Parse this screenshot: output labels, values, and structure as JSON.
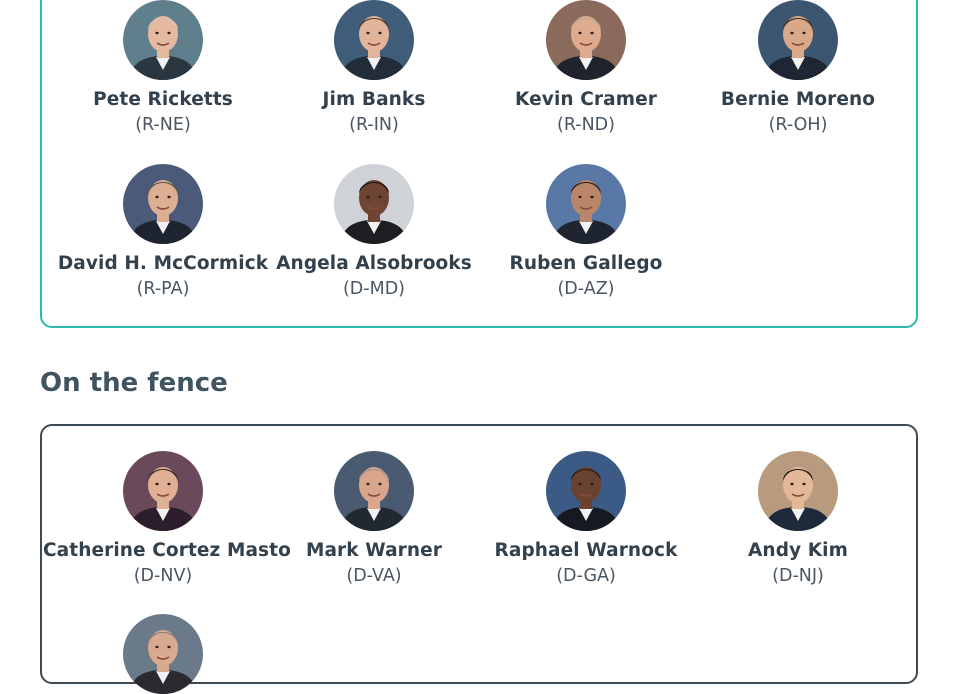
{
  "supporting": [
    {
      "name": "Pete Ricketts",
      "party": "(R-NE)",
      "bg": "#5f7f8d",
      "suit": "#2a3640",
      "hair": "#d8c2b2",
      "skin": "#e5b9a0"
    },
    {
      "name": "Jim Banks",
      "party": "(R-IN)",
      "bg": "#3f5d78",
      "suit": "#232d3a",
      "hair": "#4a3a2e",
      "skin": "#e2b59a"
    },
    {
      "name": "Kevin Cramer",
      "party": "(R-ND)",
      "bg": "#8a6a5a",
      "suit": "#1f242c",
      "hair": "#b9aa9c",
      "skin": "#deab8f"
    },
    {
      "name": "Bernie Moreno",
      "party": "(R-OH)",
      "bg": "#3c5672",
      "suit": "#1d2632",
      "hair": "#3a2e28",
      "skin": "#d8a888"
    },
    {
      "name": "David H. McCormick",
      "party": "(R-PA)",
      "bg": "#4a5a78",
      "suit": "#1f2530",
      "hair": "#5a5650",
      "skin": "#dcae92"
    },
    {
      "name": "Angela Alsobrooks",
      "party": "(D-MD)",
      "bg": "#cfd2d6",
      "suit": "#1d1d22",
      "hair": "#1b1614",
      "skin": "#6e4532"
    },
    {
      "name": "Ruben Gallego",
      "party": "(D-AZ)",
      "bg": "#5a78a6",
      "suit": "#1e2430",
      "hair": "#2a221e",
      "skin": "#b9866a"
    }
  ],
  "fence_heading": "On the fence",
  "fence": [
    {
      "name": "Catherine Cortez Masto",
      "party": "(D-NV)",
      "bg": "#6a4a5a",
      "suit": "#2c1e2a",
      "hair": "#3a2a20",
      "skin": "#e0b095"
    },
    {
      "name": "Mark Warner",
      "party": "(D-VA)",
      "bg": "#4a5a70",
      "suit": "#202832",
      "hair": "#9a9490",
      "skin": "#d9a68c"
    },
    {
      "name": "Raphael Warnock",
      "party": "(D-GA)",
      "bg": "#3c5a86",
      "suit": "#151a22",
      "hair": "#2a1c16",
      "skin": "#6a4230"
    },
    {
      "name": "Andy Kim",
      "party": "(D-NJ)",
      "bg": "#b89a7e",
      "suit": "#1e2a3c",
      "hair": "#1a1614",
      "skin": "#e2b898"
    }
  ],
  "partial_avatar": {
    "bg": "#6a7a88",
    "hair": "#8a8078",
    "skin": "#d8aa90"
  }
}
